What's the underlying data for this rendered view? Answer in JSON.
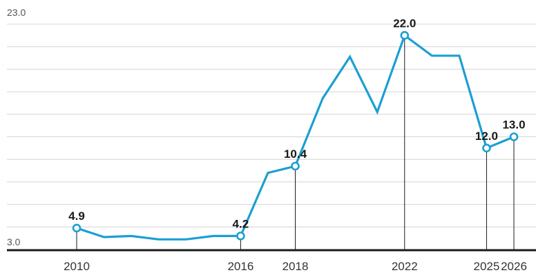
{
  "chart_data": {
    "type": "line",
    "title": "",
    "xlabel": "",
    "ylabel": "",
    "ylim": [
      3.0,
      23.0
    ],
    "y_tick_labels": [
      "23.0",
      "3.0"
    ],
    "x_tick_labels": [
      "2010",
      "2016",
      "2018",
      "2022",
      "2025",
      "2026"
    ],
    "grid": true,
    "colors": {
      "line": "#1a9fd4",
      "grid": "#d4d4d4",
      "axis": "#1a1a1a",
      "drop": "#1a1a1a"
    },
    "series": [
      {
        "x": [
          2010,
          2011,
          2012,
          2013,
          2014,
          2015,
          2016,
          2017,
          2018,
          2019,
          2020,
          2021,
          2022,
          2023,
          2024,
          2025,
          2026
        ],
        "values": [
          4.9,
          4.1,
          4.2,
          3.9,
          3.9,
          4.2,
          4.2,
          9.8,
          10.4,
          16.4,
          20.1,
          15.2,
          22.0,
          20.2,
          20.2,
          12.0,
          13.0
        ]
      }
    ],
    "data_labels": [
      {
        "x": 2010,
        "value": 4.9,
        "label": "4.9"
      },
      {
        "x": 2016,
        "value": 4.2,
        "label": "4.2"
      },
      {
        "x": 2018,
        "value": 10.4,
        "label": "10.4"
      },
      {
        "x": 2022,
        "value": 22.0,
        "label": "22.0"
      },
      {
        "x": 2025,
        "value": 12.0,
        "label": "12.0"
      },
      {
        "x": 2026,
        "value": 13.0,
        "label": "13.0"
      }
    ]
  }
}
